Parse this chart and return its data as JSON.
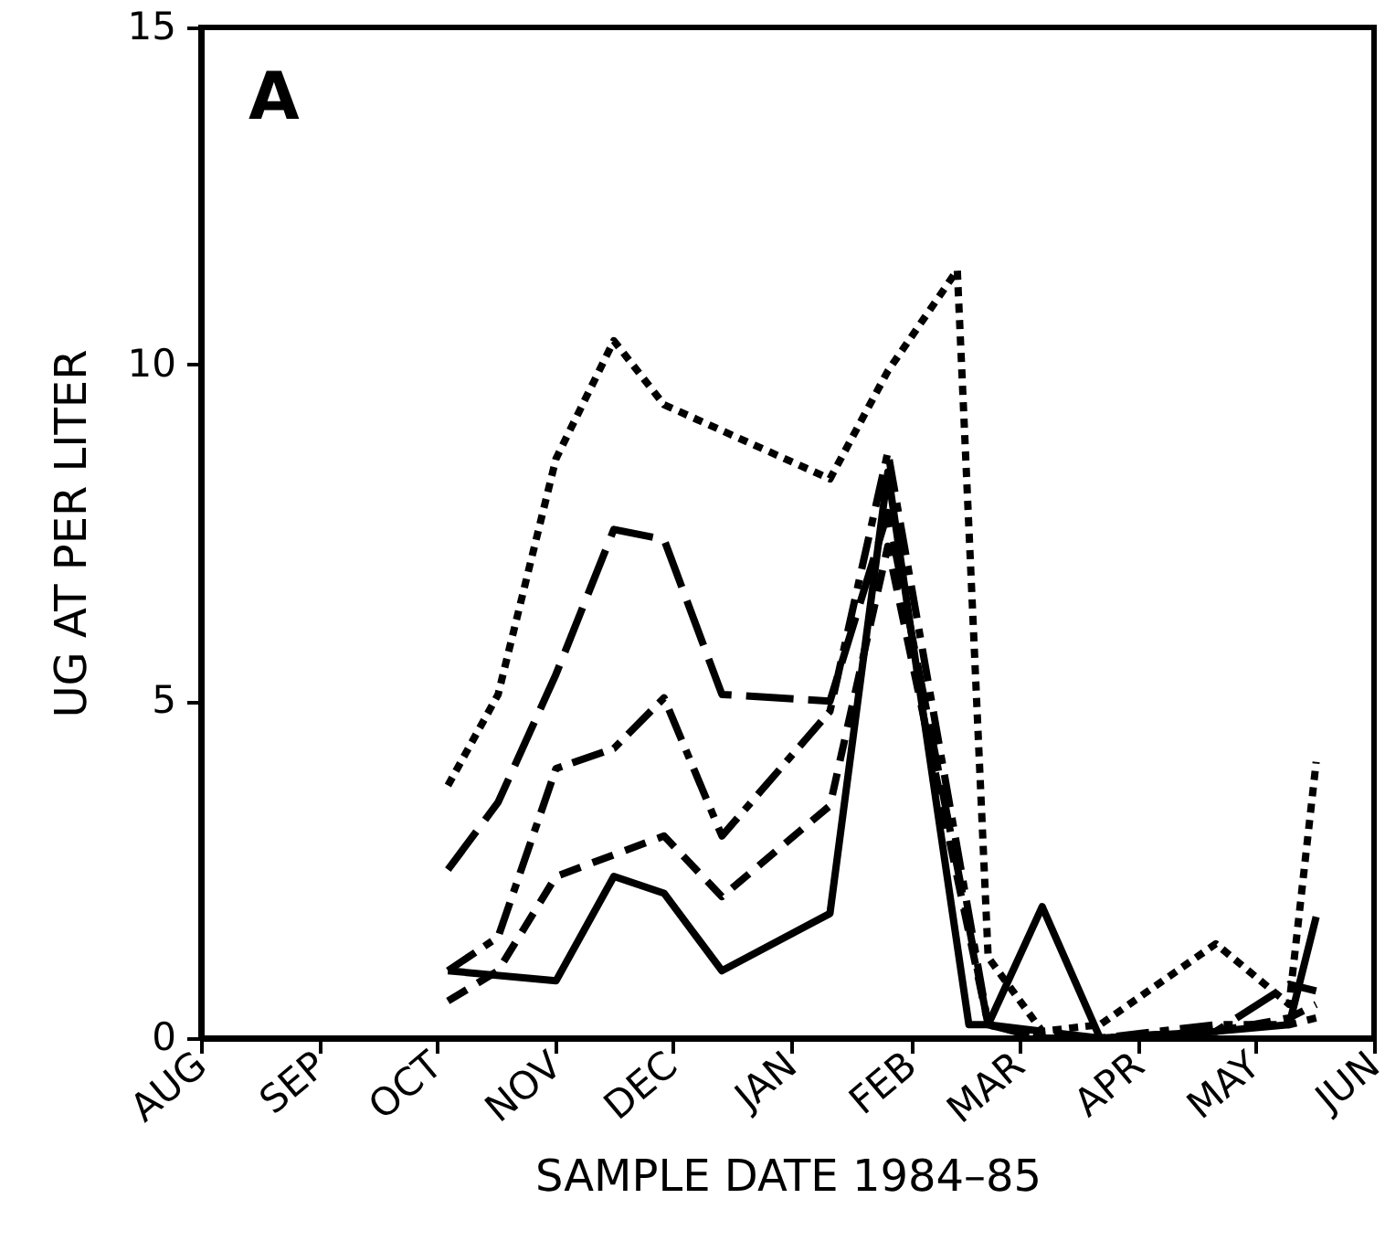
{
  "chart_data": {
    "type": "line",
    "xlabel": "SAMPLE DATE 1984–85",
    "ylabel": "UG AT PER LITER",
    "annotations": [
      "A"
    ],
    "xlim": [
      "1984-08-01",
      "1985-06-01"
    ],
    "ylim": [
      0,
      15
    ],
    "yticks": [
      0,
      5,
      10,
      15
    ],
    "xticks": [
      {
        "value": "1984-08-01",
        "label": "AUG"
      },
      {
        "value": "1984-09-01",
        "label": "SEP"
      },
      {
        "value": "1984-10-01",
        "label": "OCT"
      },
      {
        "value": "1984-11-01",
        "label": "NOV"
      },
      {
        "value": "1984-12-01",
        "label": "DEC"
      },
      {
        "value": "1985-01-01",
        "label": "JAN"
      },
      {
        "value": "1985-02-01",
        "label": "FEB"
      },
      {
        "value": "1985-03-01",
        "label": "MAR"
      },
      {
        "value": "1985-04-01",
        "label": "APR"
      },
      {
        "value": "1985-05-01",
        "label": "MAY"
      },
      {
        "value": "1985-06-01",
        "label": "JUN"
      }
    ],
    "grid": false,
    "marker": "none",
    "series": [
      {
        "color": "#000000",
        "line_style": "dotted",
        "x": [
          "1984-10-04",
          "1984-10-17",
          "1984-11-01",
          "1984-11-16",
          "1984-11-29",
          "1985-01-11",
          "1985-01-26",
          "1985-02-13",
          "1985-02-21",
          "1985-03-07",
          "1985-03-22",
          "1985-04-21",
          "1985-05-10",
          "1985-05-17"
        ],
        "values": [
          3.75,
          5.1,
          8.6,
          10.35,
          9.4,
          8.3,
          9.9,
          11.4,
          1.2,
          0.1,
          0.2,
          1.4,
          0.5,
          4.1
        ]
      },
      {
        "color": "#000000",
        "line_style": "dashed",
        "x": [
          "1984-10-04",
          "1984-10-17",
          "1984-11-01",
          "1984-11-16",
          "1984-11-29",
          "1984-12-14",
          "1985-01-11",
          "1985-01-26",
          "1985-02-21",
          "1985-03-07",
          "1985-03-22",
          "1985-04-21",
          "1985-05-10",
          "1985-05-17"
        ],
        "values": [
          2.5,
          3.5,
          5.4,
          7.55,
          7.4,
          5.1,
          5.0,
          7.8,
          0.2,
          0.1,
          0.0,
          0.1,
          0.8,
          0.7
        ]
      },
      {
        "color": "#000000",
        "line_style": "dashed",
        "x": [
          "1984-10-04",
          "1984-10-17",
          "1984-11-01",
          "1984-11-16",
          "1984-11-29",
          "1984-12-14",
          "1985-01-11",
          "1985-01-26",
          "1985-02-21",
          "1985-03-07",
          "1985-03-22",
          "1985-04-21",
          "1985-05-10",
          "1985-05-17"
        ],
        "values": [
          1.0,
          1.5,
          4.0,
          4.3,
          5.05,
          3.0,
          4.85,
          8.7,
          0.2,
          0.0,
          0.0,
          0.2,
          0.2,
          0.3
        ]
      },
      {
        "color": "#000000",
        "line_style": "dashed",
        "x": [
          "1984-10-04",
          "1984-10-17",
          "1984-11-01",
          "1984-11-29",
          "1984-12-14",
          "1985-01-11",
          "1985-01-26",
          "1985-02-21",
          "1985-03-07",
          "1985-03-22",
          "1985-04-21",
          "1985-05-10",
          "1985-05-17"
        ],
        "values": [
          0.55,
          1.0,
          2.4,
          3.0,
          2.1,
          3.45,
          7.3,
          0.2,
          0.0,
          0.0,
          0.1,
          0.3,
          0.5
        ]
      },
      {
        "color": "#000000",
        "line_style": "solid",
        "x": [
          "1984-10-04",
          "1984-11-01",
          "1984-11-16",
          "1984-11-29",
          "1984-12-14",
          "1985-01-11",
          "1985-01-26",
          "1985-02-16",
          "1985-02-21",
          "1985-03-07",
          "1985-03-22",
          "1985-04-21",
          "1985-05-10",
          "1985-05-17"
        ],
        "values": [
          1.0,
          0.85,
          2.4,
          2.15,
          1.0,
          1.85,
          8.4,
          0.2,
          0.2,
          1.95,
          0.0,
          0.1,
          0.2,
          1.8
        ]
      }
    ]
  }
}
